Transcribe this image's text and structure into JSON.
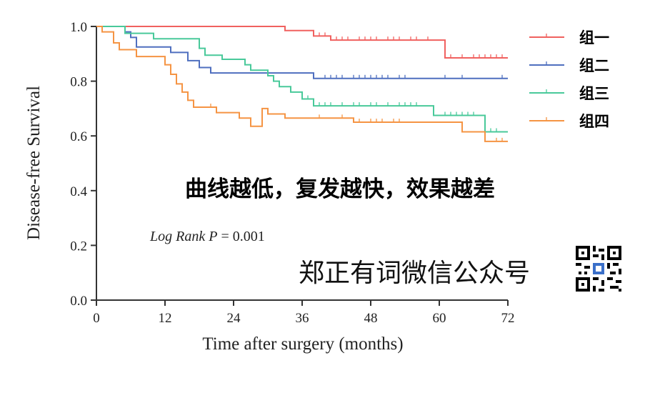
{
  "chart_data": {
    "type": "line",
    "xlabel": "Time after surgery (months)",
    "ylabel": "Disease-free Survival",
    "xlim": [
      0,
      72
    ],
    "ylim": [
      0.0,
      1.0
    ],
    "xticks": [
      0,
      12,
      24,
      36,
      48,
      60,
      72
    ],
    "yticks": [
      0.0,
      0.2,
      0.4,
      0.6,
      0.8,
      1.0
    ],
    "xtick_labels": [
      "0",
      "12",
      "24",
      "36",
      "48",
      "60",
      "72"
    ],
    "ytick_labels": [
      "0.0",
      "0.2",
      "0.4",
      "0.6",
      "0.8",
      "1.0"
    ],
    "grid": false,
    "legend_position": "right",
    "series": [
      {
        "name": "组一",
        "color": "#f0615f",
        "steps": [
          [
            0,
            1.0
          ],
          [
            33,
            0.985
          ],
          [
            38,
            0.965
          ],
          [
            41,
            0.95
          ],
          [
            61,
            0.885
          ],
          [
            72,
            0.885
          ]
        ],
        "censored": [
          39,
          40,
          42,
          43,
          44,
          46,
          47,
          48,
          49,
          51,
          52,
          53,
          55,
          56,
          58,
          62,
          64,
          66,
          67,
          68,
          69,
          70,
          71
        ]
      },
      {
        "name": "组二",
        "color": "#4f6fbf",
        "steps": [
          [
            0,
            1.0
          ],
          [
            5,
            0.98
          ],
          [
            6,
            0.96
          ],
          [
            7,
            0.925
          ],
          [
            13,
            0.905
          ],
          [
            16,
            0.875
          ],
          [
            18,
            0.85
          ],
          [
            20,
            0.83
          ],
          [
            38,
            0.81
          ],
          [
            72,
            0.81
          ]
        ],
        "censored": [
          40,
          41,
          42,
          43,
          45,
          46,
          47,
          48,
          49,
          50,
          51,
          53,
          54,
          61,
          64,
          71
        ]
      },
      {
        "name": "组三",
        "color": "#49c99a",
        "steps": [
          [
            0,
            1.0
          ],
          [
            5,
            0.975
          ],
          [
            10,
            0.955
          ],
          [
            18,
            0.92
          ],
          [
            19,
            0.895
          ],
          [
            22,
            0.88
          ],
          [
            26,
            0.86
          ],
          [
            27,
            0.84
          ],
          [
            30,
            0.82
          ],
          [
            31,
            0.8
          ],
          [
            32,
            0.78
          ],
          [
            34,
            0.76
          ],
          [
            36,
            0.735
          ],
          [
            38,
            0.71
          ],
          [
            59,
            0.675
          ],
          [
            68,
            0.615
          ],
          [
            72,
            0.615
          ]
        ],
        "censored": [
          37,
          39,
          40,
          41,
          43,
          45,
          46,
          48,
          49,
          51,
          53,
          54,
          55,
          56,
          61,
          62,
          63,
          64,
          65,
          66,
          69,
          70
        ]
      },
      {
        "name": "组四",
        "color": "#f59443",
        "steps": [
          [
            0,
            1.0
          ],
          [
            1,
            0.98
          ],
          [
            3,
            0.94
          ],
          [
            4,
            0.915
          ],
          [
            7,
            0.89
          ],
          [
            12,
            0.86
          ],
          [
            13,
            0.825
          ],
          [
            14,
            0.79
          ],
          [
            15,
            0.76
          ],
          [
            16,
            0.73
          ],
          [
            17,
            0.705
          ],
          [
            21,
            0.685
          ],
          [
            25,
            0.665
          ],
          [
            27,
            0.635
          ],
          [
            29,
            0.7
          ],
          [
            30,
            0.68
          ],
          [
            33,
            0.665
          ],
          [
            45,
            0.65
          ],
          [
            64,
            0.615
          ],
          [
            68,
            0.58
          ],
          [
            72,
            0.58
          ]
        ],
        "censored": [
          20,
          39,
          43,
          46,
          48,
          49,
          50,
          52,
          53,
          70,
          71
        ]
      }
    ],
    "annotations": {
      "headline": "曲线越低，复发越快，效果越差",
      "log_rank_prefix": "Log Rank P",
      "log_rank_value": " = 0.001",
      "watermark": "郑正有词微信公众号"
    }
  }
}
